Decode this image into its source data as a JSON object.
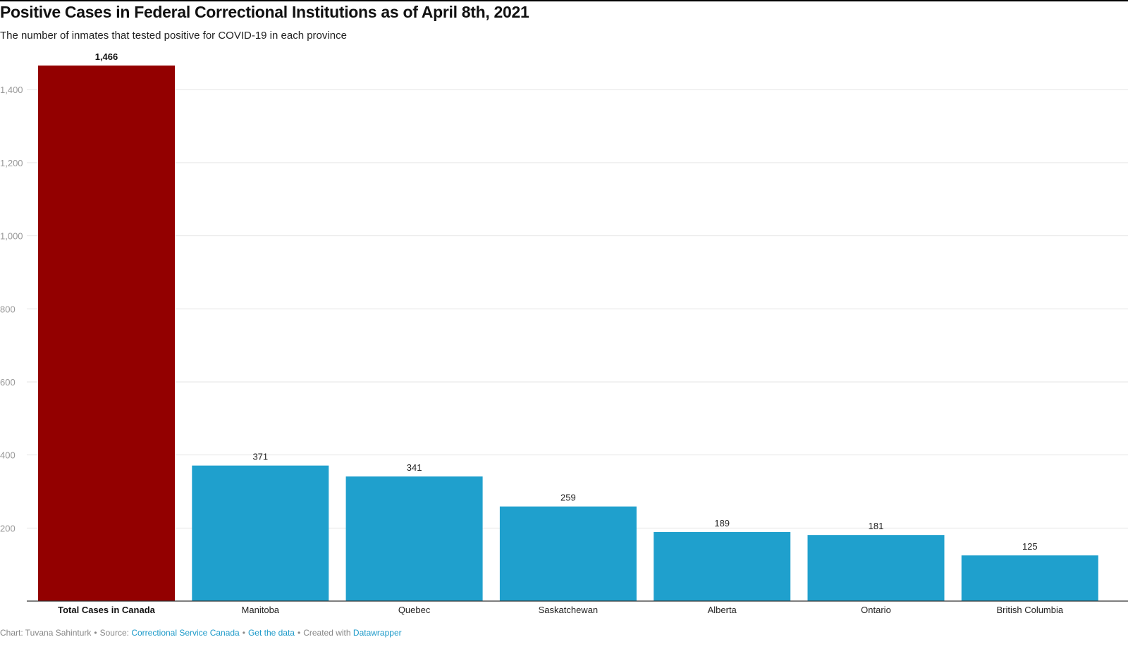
{
  "chart_data": {
    "type": "bar",
    "title": "Positive Cases in Federal Correctional Institutions as of April 8th, 2021",
    "subtitle": "The number of inmates that tested positive for COVID-19 in each province",
    "categories": [
      "Total Cases in Canada",
      "Manitoba",
      "Quebec",
      "Saskatchewan",
      "Alberta",
      "Ontario",
      "British Columbia"
    ],
    "values": [
      1466,
      371,
      341,
      259,
      189,
      181,
      125
    ],
    "value_labels": [
      "1,466",
      "371",
      "341",
      "259",
      "189",
      "181",
      "125"
    ],
    "highlighted_category": "Total Cases in Canada",
    "yticks": [
      200,
      400,
      600,
      800,
      1000,
      1200,
      1400
    ],
    "ytick_labels": [
      "200",
      "400",
      "600",
      "800",
      "1,000",
      "1,200",
      "1,400"
    ],
    "ylim": [
      0,
      1466
    ],
    "xlabel": "",
    "ylabel": "",
    "grid": true,
    "legend": "none",
    "colors": {
      "highlight": "#930000",
      "bar": "#1fa0cd",
      "grid": "#e6e6e6",
      "baseline": "#333333",
      "tick_text": "#999999",
      "label_text": "#222222"
    }
  },
  "footer": {
    "chart_by": "Chart: Tuvana Sahinturk",
    "source_prefix": "Source:",
    "source_link": "Correctional Service Canada",
    "get_data": "Get the data",
    "created_prefix": "Created with",
    "created_link": "Datawrapper",
    "separator": "•"
  }
}
